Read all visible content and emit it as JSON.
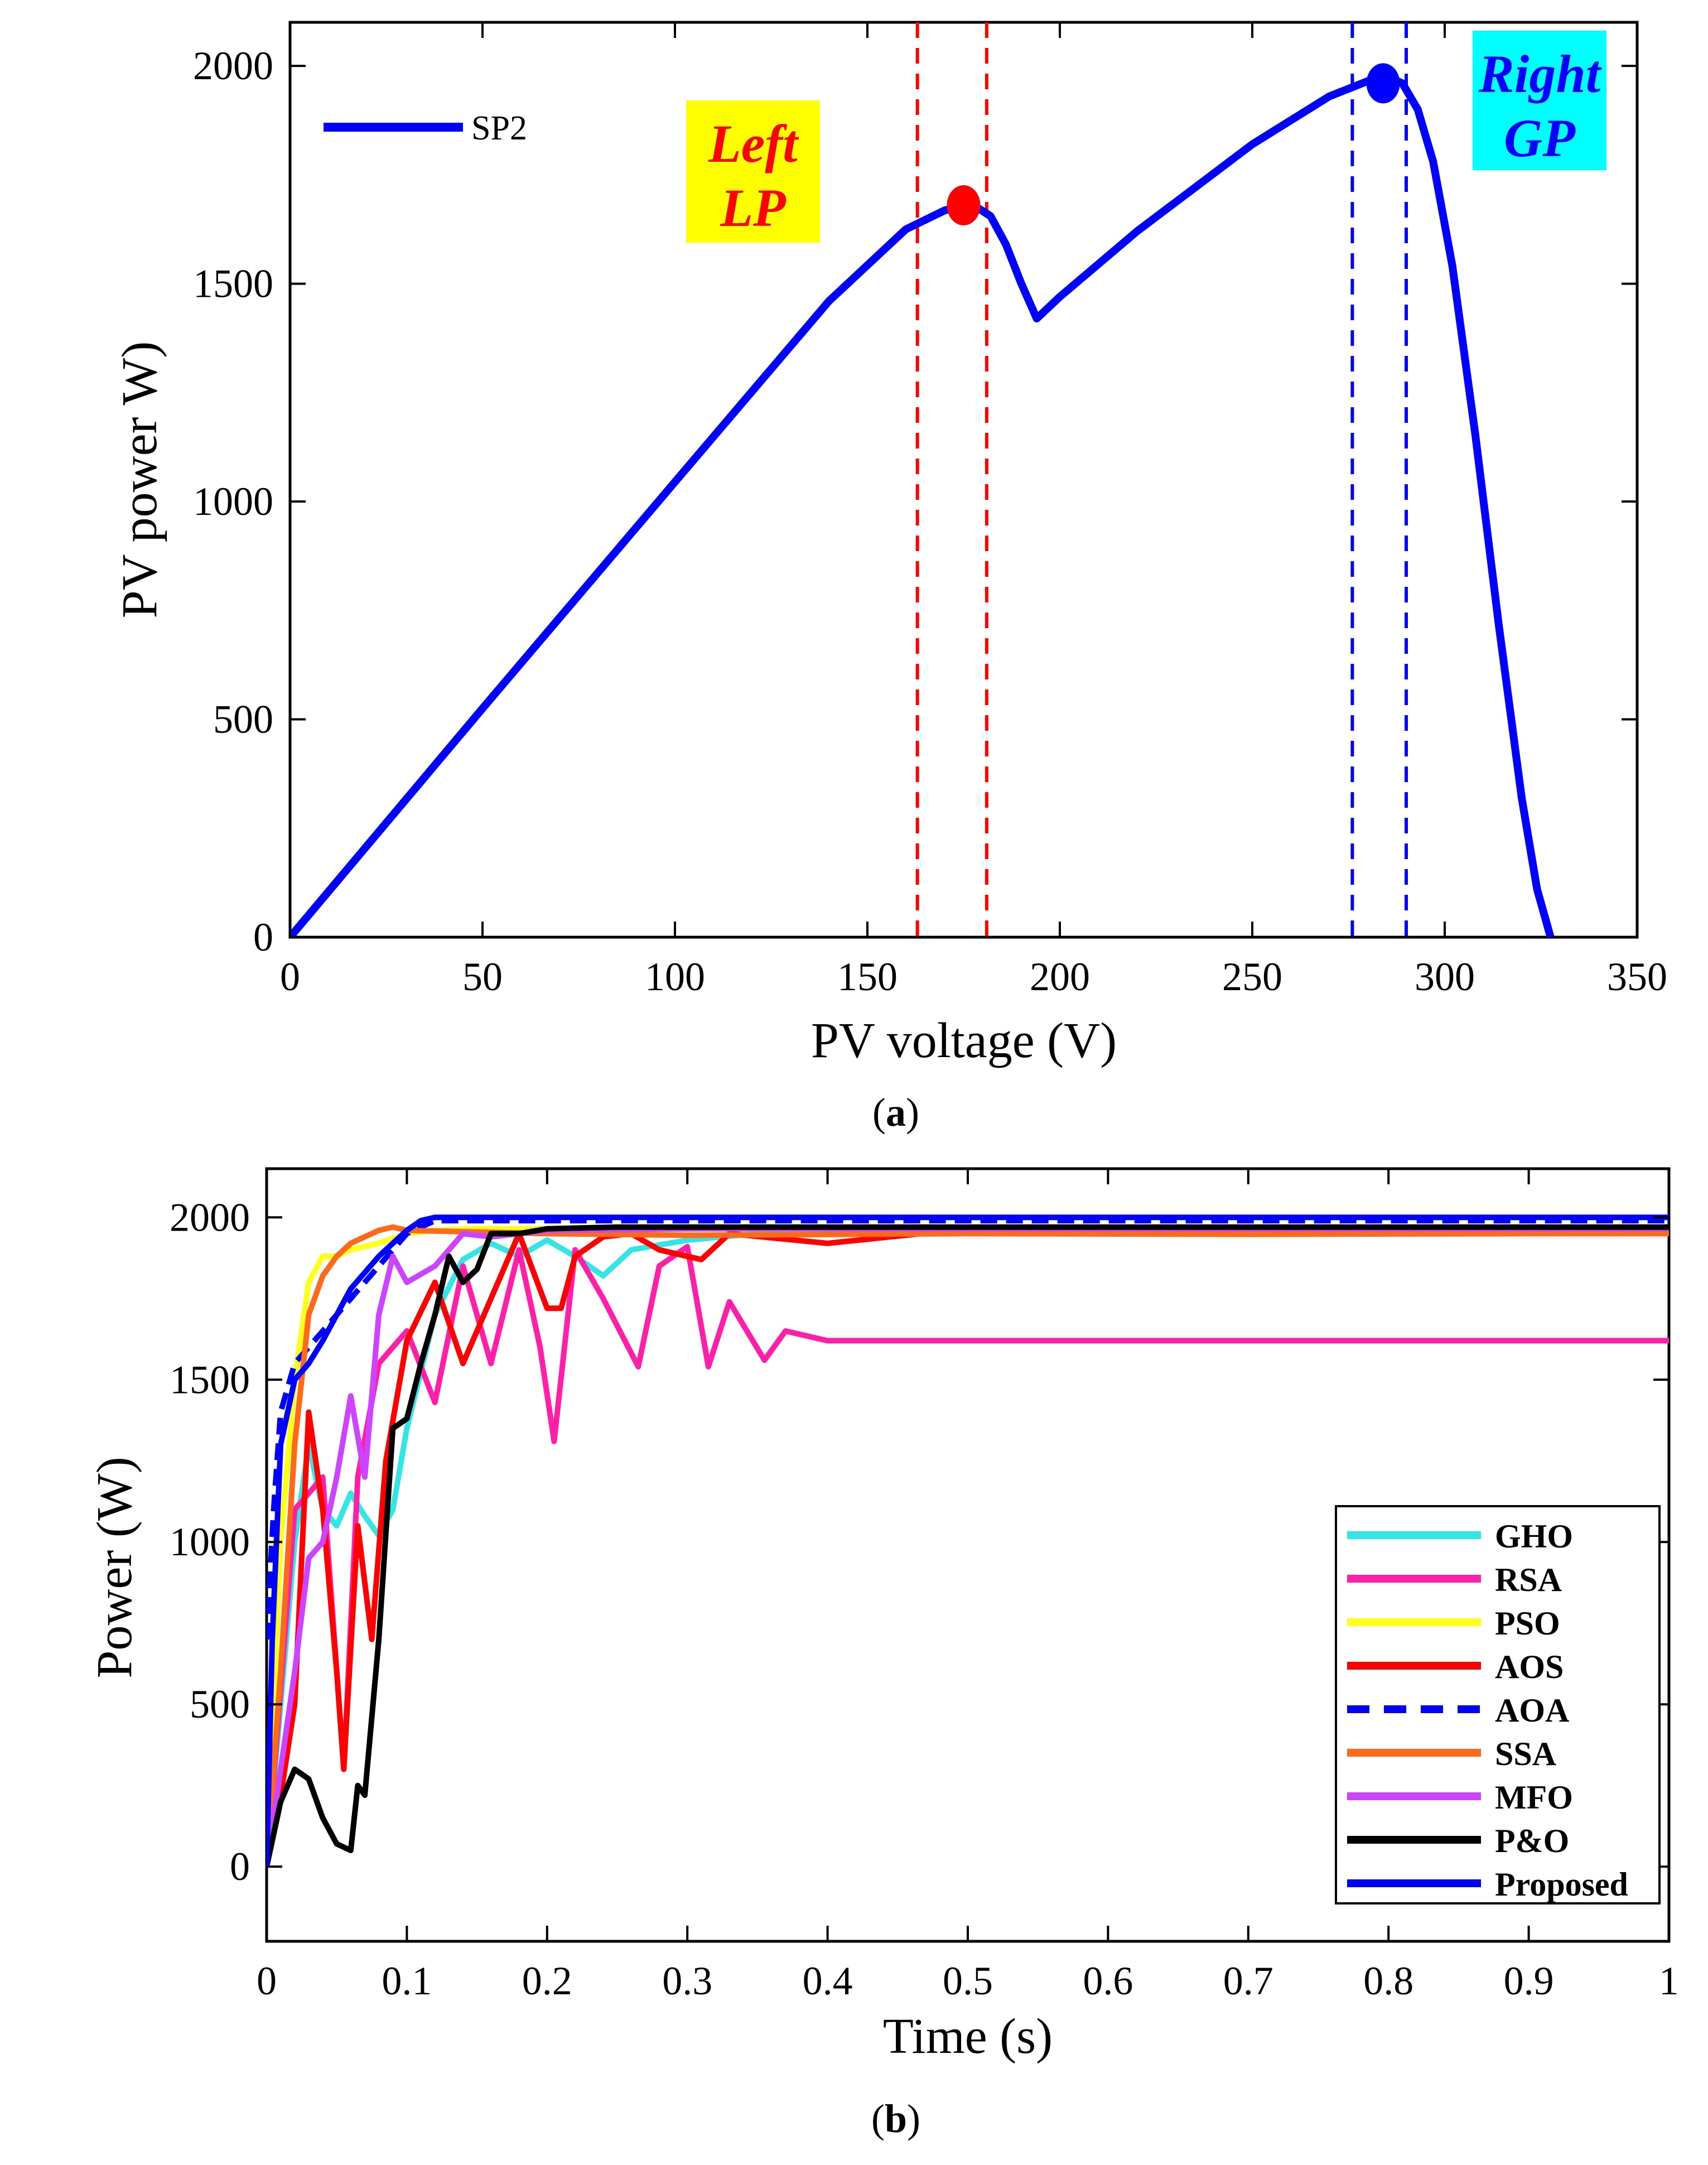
{
  "chart_data": [
    {
      "type": "line",
      "caption_letter": "a",
      "xlabel": "PV voltage (V)",
      "ylabel": "PV power W)",
      "xlim": [
        0,
        350
      ],
      "ylim": [
        0,
        2100
      ],
      "xticks": [
        0,
        50,
        100,
        150,
        200,
        250,
        300,
        350
      ],
      "yticks": [
        0,
        500,
        1000,
        1500,
        2000
      ],
      "legend": {
        "placement": "top-left",
        "entries": [
          "SP2"
        ]
      },
      "series": [
        {
          "name": "SP2",
          "color": "#0000FF",
          "x": [
            0,
            50,
            100,
            140,
            160,
            170,
            175,
            178,
            182,
            186,
            190,
            194,
            200,
            220,
            250,
            270,
            280,
            285,
            289,
            293,
            297,
            302,
            308,
            314,
            320,
            324,
            327.5
          ],
          "y": [
            0,
            525,
            1045,
            1460,
            1625,
            1668,
            1680,
            1678,
            1655,
            1590,
            1500,
            1420,
            1470,
            1620,
            1820,
            1930,
            1965,
            1975,
            1960,
            1900,
            1780,
            1540,
            1150,
            720,
            320,
            110,
            0
          ]
        }
      ],
      "markers": [
        {
          "label": "Left LP",
          "x": 175,
          "y": 1680,
          "color": "#FF0000"
        },
        {
          "label": "Right GP",
          "x": 284,
          "y": 1960,
          "color": "#0000FF"
        }
      ],
      "vlines": [
        {
          "x": 163,
          "color": "#FF0000"
        },
        {
          "x": 181,
          "color": "#FF0000"
        },
        {
          "x": 276,
          "color": "#0000FF"
        },
        {
          "x": 290,
          "color": "#0000FF"
        }
      ],
      "annotations": [
        {
          "lines": [
            "Left",
            "LP"
          ],
          "text_color": "#FF0000",
          "box_color": "#FFFF00"
        },
        {
          "lines": [
            "Right",
            "GP"
          ],
          "text_color": "#0000FF",
          "box_color": "#00FFFF"
        }
      ]
    },
    {
      "type": "line",
      "caption_letter": "b",
      "xlabel": "Time (s)",
      "ylabel": "Power (W)",
      "xlim": [
        0,
        1
      ],
      "ylim": [
        -230,
        2150
      ],
      "xticks": [
        0,
        0.1,
        0.2,
        0.3,
        0.4,
        0.5,
        0.6,
        0.7,
        0.8,
        0.9,
        1
      ],
      "yticks": [
        0,
        500,
        1000,
        1500,
        2000
      ],
      "legend": {
        "placement": "bottom-right"
      },
      "series": [
        {
          "name": "GHO",
          "color": "#33E6E6",
          "dashed": false,
          "x": [
            0,
            0.01,
            0.02,
            0.03,
            0.04,
            0.05,
            0.06,
            0.07,
            0.08,
            0.09,
            0.1,
            0.12,
            0.14,
            0.16,
            0.18,
            0.2,
            0.22,
            0.24,
            0.26,
            0.3,
            0.35,
            0.4,
            0.5,
            1
          ],
          "y": [
            0,
            500,
            1000,
            1300,
            1100,
            1050,
            1150,
            1080,
            1020,
            1100,
            1350,
            1700,
            1870,
            1920,
            1880,
            1930,
            1880,
            1820,
            1900,
            1930,
            1950,
            1960,
            1965,
            1970
          ]
        },
        {
          "name": "RSA",
          "color": "#FF1FA8",
          "dashed": false,
          "x": [
            0,
            0.02,
            0.04,
            0.055,
            0.065,
            0.08,
            0.1,
            0.12,
            0.14,
            0.16,
            0.18,
            0.195,
            0.205,
            0.22,
            0.24,
            0.265,
            0.28,
            0.3,
            0.315,
            0.33,
            0.355,
            0.37,
            0.4,
            0.5,
            1
          ],
          "y": [
            0,
            1100,
            1200,
            300,
            1200,
            1550,
            1650,
            1430,
            1850,
            1550,
            1900,
            1600,
            1310,
            1900,
            1750,
            1540,
            1850,
            1910,
            1540,
            1740,
            1560,
            1650,
            1620,
            1620,
            1620
          ]
        },
        {
          "name": "PSO",
          "color": "#FFFF1A",
          "dashed": false,
          "x": [
            0,
            0.01,
            0.02,
            0.03,
            0.04,
            0.05,
            0.06,
            0.08,
            0.1,
            0.12,
            0.15,
            0.2,
            0.3,
            1
          ],
          "y": [
            0,
            1000,
            1500,
            1800,
            1880,
            1880,
            1900,
            1920,
            1950,
            1960,
            1965,
            1965,
            1965,
            1965
          ]
        },
        {
          "name": "AOS",
          "color": "#FF0000",
          "dashed": false,
          "x": [
            0,
            0.008,
            0.02,
            0.03,
            0.04,
            0.05,
            0.055,
            0.065,
            0.075,
            0.085,
            0.1,
            0.12,
            0.14,
            0.16,
            0.18,
            0.2,
            0.21,
            0.22,
            0.24,
            0.26,
            0.28,
            0.31,
            0.33,
            0.4,
            0.5,
            1
          ],
          "y": [
            0,
            160,
            500,
            1400,
            1100,
            600,
            300,
            1050,
            700,
            1250,
            1620,
            1800,
            1550,
            1750,
            1950,
            1720,
            1720,
            1880,
            1940,
            1950,
            1900,
            1870,
            1950,
            1920,
            1965,
            1965
          ]
        },
        {
          "name": "AOA",
          "color": "#0000FF",
          "dashed": true,
          "x": [
            0,
            0.005,
            0.01,
            0.02,
            0.03,
            0.04,
            0.06,
            0.08,
            0.1,
            0.12,
            1
          ],
          "y": [
            700,
            1100,
            1400,
            1550,
            1600,
            1650,
            1750,
            1850,
            1950,
            1990,
            1990
          ]
        },
        {
          "name": "SSA",
          "color": "#FF6A1A",
          "dashed": false,
          "x": [
            0,
            0.01,
            0.02,
            0.03,
            0.04,
            0.05,
            0.06,
            0.08,
            0.09,
            0.1,
            0.15,
            0.2,
            0.3,
            0.5,
            0.7,
            0.9,
            1
          ],
          "y": [
            0,
            600,
            1300,
            1700,
            1820,
            1880,
            1920,
            1960,
            1970,
            1960,
            1955,
            1950,
            1945,
            1950,
            1948,
            1950,
            1950
          ]
        },
        {
          "name": "MFO",
          "color": "#CC44FF",
          "dashed": false,
          "x": [
            0,
            0.02,
            0.03,
            0.04,
            0.05,
            0.06,
            0.07,
            0.08,
            0.09,
            0.1,
            0.12,
            0.14,
            0.16,
            0.2,
            0.3,
            0.5,
            1
          ],
          "y": [
            0,
            600,
            950,
            1000,
            1200,
            1450,
            1200,
            1700,
            1880,
            1800,
            1850,
            1950,
            1940,
            1960,
            1965,
            1965,
            1965
          ]
        },
        {
          "name": "P&O",
          "color": "#000000",
          "dashed": false,
          "x": [
            0,
            0.01,
            0.02,
            0.03,
            0.04,
            0.05,
            0.06,
            0.065,
            0.07,
            0.08,
            0.09,
            0.1,
            0.11,
            0.12,
            0.13,
            0.14,
            0.15,
            0.16,
            0.18,
            0.2,
            0.25,
            0.3,
            1
          ],
          "y": [
            0,
            200,
            300,
            270,
            150,
            70,
            50,
            250,
            220,
            700,
            1350,
            1380,
            1550,
            1700,
            1880,
            1800,
            1840,
            1950,
            1950,
            1965,
            1970,
            1970,
            1970
          ]
        },
        {
          "name": "Proposed",
          "color": "#0000FF",
          "dashed": false,
          "x": [
            0,
            0.004,
            0.01,
            0.02,
            0.03,
            0.04,
            0.05,
            0.06,
            0.08,
            0.1,
            0.11,
            0.12,
            1
          ],
          "y": [
            0,
            700,
            1300,
            1500,
            1550,
            1620,
            1700,
            1780,
            1880,
            1960,
            1990,
            2000,
            2000
          ]
        }
      ]
    }
  ]
}
